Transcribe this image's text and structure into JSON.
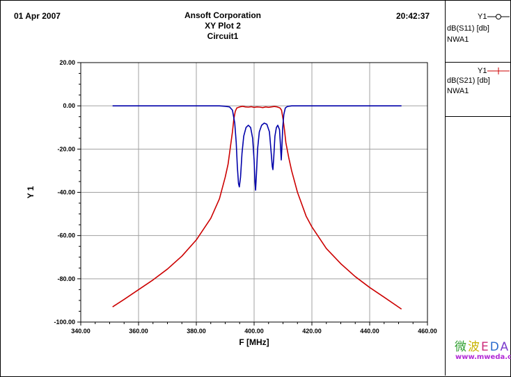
{
  "header": {
    "date": "01 Apr 2007",
    "company": "Ansoft Corporation",
    "plot_name": "XY Plot 2",
    "circuit": "Circuit1",
    "time": "20:42:37"
  },
  "legend": [
    {
      "trace": "Y1",
      "expr": "dB(S11) [db]",
      "source": "NWA1",
      "color": "#0000aa",
      "marker": "circle"
    },
    {
      "trace": "Y1",
      "expr": "dB(S21) [db]",
      "source": "NWA1",
      "color": "#cc0000",
      "marker": "cross"
    }
  ],
  "watermark": {
    "brand": "微波EDA",
    "url": "www.mweda.com"
  },
  "chart_data": {
    "type": "line",
    "xlabel": "F [MHz]",
    "ylabel": "Y 1",
    "xlim": [
      340,
      460
    ],
    "ylim": [
      -100,
      20
    ],
    "x_ticks": [
      "340.00",
      "360.00",
      "380.00",
      "400.00",
      "420.00",
      "440.00",
      "460.00"
    ],
    "y_ticks": [
      "20.00",
      "0.00",
      "-20.00",
      "-40.00",
      "-60.00",
      "-80.00",
      "-100.00"
    ],
    "grid": true,
    "series": [
      {
        "name": "dB(S11) [db]",
        "color": "#0000aa",
        "points": [
          [
            351,
            0
          ],
          [
            388,
            0
          ],
          [
            390,
            -0.2
          ],
          [
            391.5,
            -0.5
          ],
          [
            392.5,
            -2
          ],
          [
            393.3,
            -8
          ],
          [
            393.8,
            -17
          ],
          [
            394.2,
            -28
          ],
          [
            394.6,
            -36
          ],
          [
            394.9,
            -37.5
          ],
          [
            395.3,
            -33
          ],
          [
            395.8,
            -22
          ],
          [
            396.4,
            -14
          ],
          [
            397.2,
            -10
          ],
          [
            398,
            -9
          ],
          [
            398.8,
            -10
          ],
          [
            399.5,
            -15
          ],
          [
            400,
            -25
          ],
          [
            400.3,
            -35
          ],
          [
            400.5,
            -39
          ],
          [
            400.8,
            -32
          ],
          [
            401.2,
            -20
          ],
          [
            401.8,
            -12
          ],
          [
            402.6,
            -9
          ],
          [
            403.5,
            -8
          ],
          [
            404.4,
            -8.5
          ],
          [
            405.3,
            -12
          ],
          [
            405.8,
            -20
          ],
          [
            406.3,
            -28
          ],
          [
            406.5,
            -29.5
          ],
          [
            406.8,
            -24
          ],
          [
            407.2,
            -14
          ],
          [
            407.7,
            -10
          ],
          [
            408.2,
            -9
          ],
          [
            408.8,
            -11
          ],
          [
            409.1,
            -18
          ],
          [
            409.4,
            -25
          ],
          [
            409.6,
            -20
          ],
          [
            409.9,
            -10
          ],
          [
            410.3,
            -4
          ],
          [
            410.8,
            -1
          ],
          [
            411.5,
            -0.3
          ],
          [
            413,
            0
          ],
          [
            451,
            0
          ]
        ]
      },
      {
        "name": "dB(S21) [db]",
        "color": "#cc0000",
        "points": [
          [
            351,
            -93
          ],
          [
            355,
            -89.5
          ],
          [
            360,
            -85
          ],
          [
            365,
            -80.5
          ],
          [
            370,
            -75.5
          ],
          [
            375,
            -69.5
          ],
          [
            380,
            -62
          ],
          [
            385,
            -52
          ],
          [
            388,
            -43
          ],
          [
            390,
            -33
          ],
          [
            391,
            -27
          ],
          [
            392,
            -17
          ],
          [
            392.5,
            -12
          ],
          [
            393,
            -6
          ],
          [
            393.5,
            -2.5
          ],
          [
            394,
            -1
          ],
          [
            395,
            -0.5
          ],
          [
            396,
            -0.2
          ],
          [
            397,
            -0.5
          ],
          [
            398,
            -0.6
          ],
          [
            399,
            -0.4
          ],
          [
            400,
            -0.7
          ],
          [
            401,
            -0.5
          ],
          [
            402,
            -0.6
          ],
          [
            403,
            -0.8
          ],
          [
            404,
            -0.5
          ],
          [
            405,
            -0.7
          ],
          [
            406,
            -0.5
          ],
          [
            407,
            -0.3
          ],
          [
            408,
            -0.5
          ],
          [
            409,
            -1
          ],
          [
            409.5,
            -2
          ],
          [
            410,
            -6
          ],
          [
            410.5,
            -11
          ],
          [
            411,
            -17
          ],
          [
            412,
            -24
          ],
          [
            413,
            -30
          ],
          [
            415,
            -40
          ],
          [
            418,
            -51
          ],
          [
            420,
            -56
          ],
          [
            425,
            -66
          ],
          [
            430,
            -73
          ],
          [
            435,
            -79
          ],
          [
            440,
            -84
          ],
          [
            445,
            -88.5
          ],
          [
            451,
            -94
          ]
        ]
      }
    ]
  }
}
